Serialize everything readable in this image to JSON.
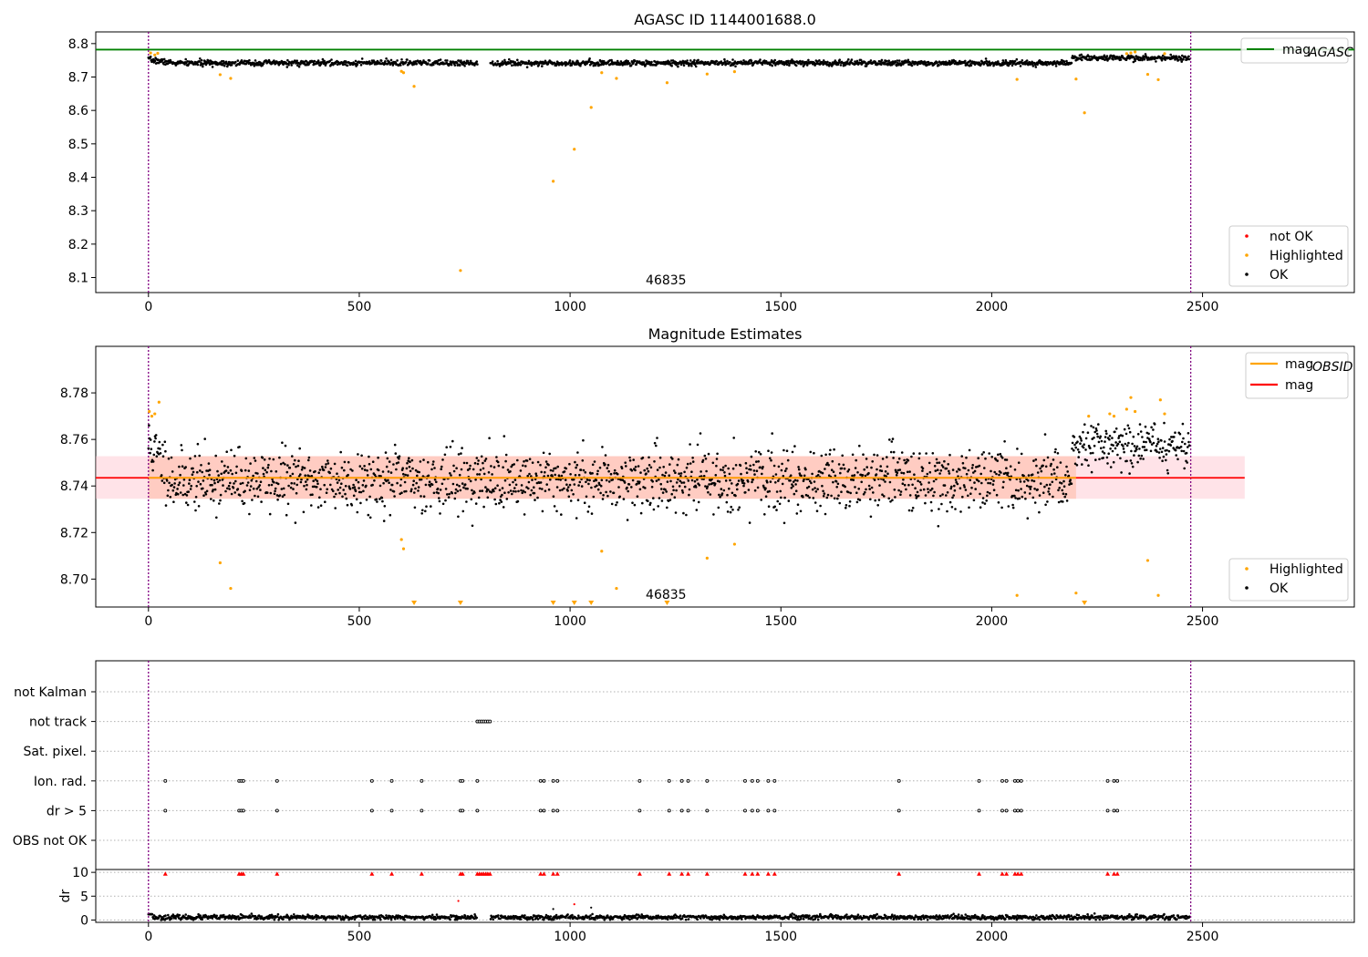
{
  "chart_data": [
    {
      "type": "scatter",
      "title": "AGASC ID 1144001688.0",
      "xlim": [
        -125,
        2860
      ],
      "ylim": [
        8.055,
        8.835
      ],
      "xticks": [
        0,
        500,
        1000,
        1500,
        2000,
        2500
      ],
      "yticks": [
        8.1,
        8.2,
        8.3,
        8.4,
        8.5,
        8.6,
        8.7,
        8.8
      ],
      "obsid_label": "46835",
      "obsid_label_x": 1240,
      "obs_bounds": [
        0,
        2472
      ],
      "mag_agasc": 8.782,
      "legend_lines": [
        {
          "label_main": "mag",
          "label_sub": "AGASC",
          "color": "#008000"
        }
      ],
      "legend_points": [
        {
          "label": "not OK",
          "color": "#ff0000"
        },
        {
          "label": "Highlighted",
          "color": "#ffa500"
        },
        {
          "label": "OK",
          "color": "#000000"
        }
      ],
      "gaps": [
        [
          780,
          810
        ]
      ],
      "highlighted": [
        [
          5,
          8.772
        ],
        [
          15,
          8.766
        ],
        [
          22,
          8.771
        ],
        [
          170,
          8.707
        ],
        [
          195,
          8.696
        ],
        [
          600,
          8.717
        ],
        [
          605,
          8.713
        ],
        [
          630,
          8.672
        ],
        [
          740,
          8.121
        ],
        [
          960,
          8.388
        ],
        [
          1010,
          8.484
        ],
        [
          1050,
          8.609
        ],
        [
          1075,
          8.713
        ],
        [
          1110,
          8.696
        ],
        [
          1230,
          8.683
        ],
        [
          1325,
          8.709
        ],
        [
          1390,
          8.716
        ],
        [
          2060,
          8.693
        ],
        [
          2200,
          8.694
        ],
        [
          2220,
          8.593
        ],
        [
          2320,
          8.77
        ],
        [
          2330,
          8.772
        ],
        [
          2340,
          8.775
        ],
        [
          2370,
          8.708
        ],
        [
          2395,
          8.692
        ],
        [
          2410,
          8.77
        ]
      ]
    },
    {
      "type": "scatter",
      "title": "Magnitude Estimates",
      "xlim": [
        -125,
        2860
      ],
      "ylim": [
        8.688,
        8.8
      ],
      "xticks": [
        0,
        500,
        1000,
        1500,
        2000,
        2500
      ],
      "yticks": [
        8.7,
        8.72,
        8.74,
        8.76,
        8.78
      ],
      "obsid_label": "46835",
      "obsid_label_x": 1240,
      "obs_bounds": [
        0,
        2472
      ],
      "mag": 8.7435,
      "mag_band": [
        8.7345,
        8.7528
      ],
      "mag_band_x": [
        -125,
        2600
      ],
      "mag_obsid": 8.7435,
      "mag_obsid_band": [
        8.7345,
        8.7528
      ],
      "mag_obsid_band_x": [
        0,
        2200
      ],
      "legend_lines": [
        {
          "label_main": "mag",
          "label_sub": "OBSID",
          "color": "#ffa500"
        },
        {
          "label_main": "mag",
          "label_sub": "",
          "color": "#ff0000"
        }
      ],
      "legend_points": [
        {
          "label": "Highlighted",
          "color": "#ffa500"
        },
        {
          "label": "OK",
          "color": "#000000"
        }
      ],
      "highlighted": [
        [
          2,
          8.772
        ],
        [
          8,
          8.77
        ],
        [
          15,
          8.771
        ],
        [
          25,
          8.776
        ],
        [
          170,
          8.707
        ],
        [
          195,
          8.696
        ],
        [
          600,
          8.717
        ],
        [
          605,
          8.713
        ],
        [
          1075,
          8.712
        ],
        [
          1110,
          8.696
        ],
        [
          1325,
          8.709
        ],
        [
          1390,
          8.715
        ],
        [
          2060,
          8.693
        ],
        [
          2200,
          8.694
        ],
        [
          2230,
          8.77
        ],
        [
          2280,
          8.771
        ],
        [
          2290,
          8.77
        ],
        [
          2320,
          8.773
        ],
        [
          2330,
          8.778
        ],
        [
          2340,
          8.772
        ],
        [
          2370,
          8.708
        ],
        [
          2395,
          8.693
        ],
        [
          2400,
          8.777
        ],
        [
          2410,
          8.771
        ]
      ],
      "below_markers": [
        630,
        740,
        960,
        1010,
        1050,
        1230,
        2220
      ]
    },
    {
      "type": "scatter",
      "title": "",
      "xlim": [
        -125,
        2860
      ],
      "xticks": [
        0,
        500,
        1000,
        1500,
        2000,
        2500
      ],
      "obs_bounds": [
        0,
        2472
      ],
      "flag_rows": [
        "not Kalman",
        "not track",
        "Sat. pixel.",
        "Ion. rad.",
        "dr > 5",
        "OBS not OK"
      ],
      "flags": {
        "not track": [
          780,
          785,
          790,
          795,
          800,
          805,
          810
        ],
        "Ion. rad.": [
          40,
          215,
          220,
          225,
          305,
          530,
          577,
          648,
          740,
          745,
          780,
          930,
          938,
          960,
          970,
          1165,
          1235,
          1265,
          1280,
          1325,
          1415,
          1432,
          1445,
          1470,
          1485,
          1780,
          1970,
          2025,
          2035,
          2055,
          2062,
          2070,
          2275,
          2290,
          2298
        ],
        "dr > 5": [
          40,
          215,
          220,
          225,
          305,
          530,
          577,
          648,
          740,
          745,
          780,
          930,
          938,
          960,
          970,
          1165,
          1235,
          1265,
          1280,
          1325,
          1415,
          1432,
          1445,
          1470,
          1485,
          1780,
          1970,
          2025,
          2035,
          2055,
          2062,
          2070,
          2275,
          2290,
          2298
        ]
      },
      "dr": {
        "ylabel": "dr",
        "ylim": [
          -0.5,
          10.6
        ],
        "yticks": [
          0,
          5,
          10
        ],
        "gaps": [
          [
            780,
            810
          ]
        ],
        "outliers_dr": [
          [
            735,
            4.0
          ],
          [
            960,
            2.3
          ],
          [
            1010,
            3.3
          ],
          [
            1050,
            2.6
          ]
        ],
        "clipped": [
          40,
          215,
          220,
          225,
          305,
          530,
          577,
          648,
          740,
          745,
          780,
          785,
          790,
          795,
          800,
          805,
          810,
          930,
          938,
          960,
          970,
          1165,
          1235,
          1265,
          1280,
          1325,
          1415,
          1432,
          1445,
          1470,
          1485,
          1780,
          1970,
          2025,
          2035,
          2055,
          2062,
          2070,
          2275,
          2290,
          2298
        ]
      }
    }
  ]
}
